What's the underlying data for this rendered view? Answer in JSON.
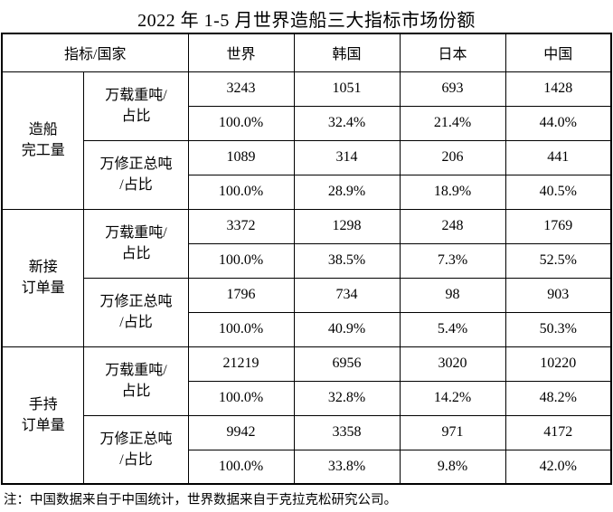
{
  "title": "2022 年 1-5 月世界造船三大指标市场份额",
  "note": "注：中国数据来自于中国统计，世界数据来自于克拉克松研究公司。",
  "table": {
    "header": {
      "indicator_country": "指标/国家",
      "columns": [
        "世界",
        "韩国",
        "日本",
        "中国"
      ]
    },
    "sections": [
      {
        "name": "造船\n完工量",
        "metrics": [
          {
            "label": "万载重吨/\n占比",
            "values": [
              "3243",
              "1051",
              "693",
              "1428"
            ],
            "shares": [
              "100.0%",
              "32.4%",
              "21.4%",
              "44.0%"
            ]
          },
          {
            "label": "万修正总吨\n/占比",
            "values": [
              "1089",
              "314",
              "206",
              "441"
            ],
            "shares": [
              "100.0%",
              "28.9%",
              "18.9%",
              "40.5%"
            ]
          }
        ]
      },
      {
        "name": "新接\n订单量",
        "metrics": [
          {
            "label": "万载重吨/\n占比",
            "values": [
              "3372",
              "1298",
              "248",
              "1769"
            ],
            "shares": [
              "100.0%",
              "38.5%",
              "7.3%",
              "52.5%"
            ]
          },
          {
            "label": "万修正总吨\n/占比",
            "values": [
              "1796",
              "734",
              "98",
              "903"
            ],
            "shares": [
              "100.0%",
              "40.9%",
              "5.4%",
              "50.3%"
            ]
          }
        ]
      },
      {
        "name": "手持\n订单量",
        "metrics": [
          {
            "label": "万载重吨/\n占比",
            "values": [
              "21219",
              "6956",
              "3020",
              "10220"
            ],
            "shares": [
              "100.0%",
              "32.8%",
              "14.2%",
              "48.2%"
            ]
          },
          {
            "label": "万修正总吨\n/占比",
            "values": [
              "9942",
              "3358",
              "971",
              "4172"
            ],
            "shares": [
              "100.0%",
              "33.8%",
              "9.8%",
              "42.0%"
            ]
          }
        ]
      }
    ]
  },
  "chart_data": {
    "type": "table",
    "title": "2022 年 1-5 月世界造船三大指标市场份额",
    "columns": [
      "世界",
      "韩国",
      "日本",
      "中国"
    ],
    "rows": [
      {
        "section": "造船完工量",
        "metric": "万载重吨",
        "values": [
          3243,
          1051,
          693,
          1428
        ],
        "shares_pct": [
          100.0,
          32.4,
          21.4,
          44.0
        ]
      },
      {
        "section": "造船完工量",
        "metric": "万修正总吨",
        "values": [
          1089,
          314,
          206,
          441
        ],
        "shares_pct": [
          100.0,
          28.9,
          18.9,
          40.5
        ]
      },
      {
        "section": "新接订单量",
        "metric": "万载重吨",
        "values": [
          3372,
          1298,
          248,
          1769
        ],
        "shares_pct": [
          100.0,
          38.5,
          7.3,
          52.5
        ]
      },
      {
        "section": "新接订单量",
        "metric": "万修正总吨",
        "values": [
          1796,
          734,
          98,
          903
        ],
        "shares_pct": [
          100.0,
          40.9,
          5.4,
          50.3
        ]
      },
      {
        "section": "手持订单量",
        "metric": "万载重吨",
        "values": [
          21219,
          6956,
          3020,
          10220
        ],
        "shares_pct": [
          100.0,
          32.8,
          14.2,
          48.2
        ]
      },
      {
        "section": "手持订单量",
        "metric": "万修正总吨",
        "values": [
          9942,
          3358,
          971,
          4172
        ],
        "shares_pct": [
          100.0,
          33.8,
          9.8,
          42.0
        ]
      }
    ],
    "footnote": "注：中国数据来自于中国统计，世界数据来自于克拉克松研究公司。"
  }
}
